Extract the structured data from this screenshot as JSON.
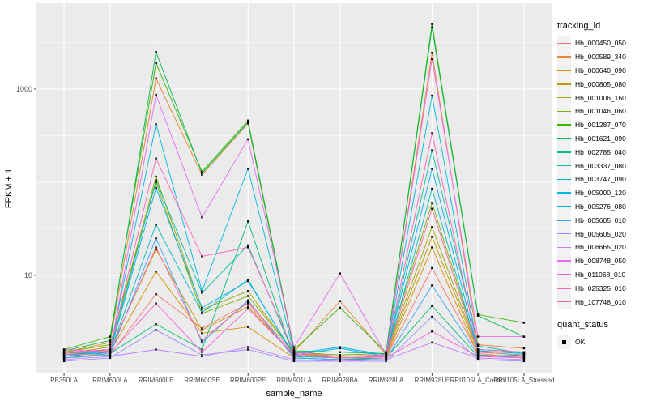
{
  "chart_data": {
    "type": "line",
    "title": "",
    "xlabel": "sample_name",
    "ylabel": "FPKM + 1",
    "y_scale": "log10",
    "ylim": [
      1,
      8000
    ],
    "y_ticks": [
      10,
      1000
    ],
    "y_tick_labels": [
      "10",
      "1000"
    ],
    "grid": true,
    "panel_bg": "#EBEBEB",
    "grid_color": "#FFFFFF",
    "axis_text_color": "#4D4D4D",
    "tick_color": "#333333",
    "point_color": "#000000",
    "legend_position": "right",
    "categories": [
      "PB350LA",
      "RRIM600LA",
      "RRIM600LE",
      "RRIM600SE",
      "RRIM600PE",
      "RRIM901LA",
      "RRIM928BA",
      "RRIM928LA",
      "RRIM928LE",
      "RRII105LA_Control",
      "RRII105LA_Stressed"
    ],
    "series": [
      {
        "name": "Hb_000450_050",
        "color": "#F8766D",
        "values": [
          1.3,
          1.4,
          6.3,
          2.7,
          5.0,
          1.35,
          1.3,
          1.3,
          12,
          1.45,
          1.3
        ]
      },
      {
        "name": "Hb_000589_340",
        "color": "#EA8331",
        "values": [
          1.5,
          1.9,
          1300,
          120,
          430,
          1.5,
          5.3,
          1.4,
          2450,
          1.8,
          1.65
        ]
      },
      {
        "name": "Hb_000640_090",
        "color": "#D89000",
        "values": [
          1.35,
          1.5,
          11,
          2.4,
          2.8,
          1.3,
          1.25,
          1.3,
          20,
          1.4,
          1.35
        ]
      },
      {
        "name": "Hb_000805_080",
        "color": "#C09B00",
        "values": [
          1.4,
          1.6,
          19,
          2.6,
          4.6,
          1.4,
          1.3,
          1.35,
          26,
          1.5,
          1.4
        ]
      },
      {
        "name": "Hb_001006_160",
        "color": "#A3A500",
        "values": [
          1.45,
          1.7,
          115,
          4.3,
          6.8,
          1.45,
          1.35,
          1.4,
          33,
          1.55,
          1.45
        ]
      },
      {
        "name": "Hb_001046_060",
        "color": "#7CAE00",
        "values": [
          1.5,
          1.8,
          100,
          3.9,
          6.0,
          1.5,
          1.4,
          1.45,
          60,
          1.6,
          1.5
        ]
      },
      {
        "name": "Hb_001287_070",
        "color": "#39B600",
        "values": [
          1.6,
          2.2,
          1900,
          130,
          460,
          1.6,
          4.5,
          1.5,
          5000,
          3.8,
          3.1
        ]
      },
      {
        "name": "Hb_001621_090",
        "color": "#00BB4E",
        "values": [
          1.55,
          2.0,
          2500,
          125,
          440,
          1.55,
          1.5,
          1.45,
          4600,
          3.7,
          2.2
        ]
      },
      {
        "name": "Hb_002785_040",
        "color": "#00BF7D",
        "values": [
          1.3,
          1.45,
          3.0,
          1.6,
          38,
          1.3,
          1.25,
          1.3,
          4.7,
          1.35,
          1.4
        ]
      },
      {
        "name": "Hb_003337_080",
        "color": "#00C1A3",
        "values": [
          1.4,
          1.55,
          105,
          6.5,
          21,
          1.4,
          1.3,
          1.35,
          220,
          1.75,
          1.45
        ]
      },
      {
        "name": "Hb_003747_090",
        "color": "#00BFC4",
        "values": [
          1.35,
          1.5,
          35,
          4.0,
          9.0,
          1.35,
          1.3,
          1.3,
          85,
          1.5,
          1.4
        ]
      },
      {
        "name": "Hb_005000_120",
        "color": "#00BAE0",
        "values": [
          1.45,
          1.6,
          420,
          6.8,
          140,
          1.45,
          1.7,
          1.4,
          850,
          1.6,
          1.5
        ]
      },
      {
        "name": "Hb_005276_080",
        "color": "#00B0F6",
        "values": [
          1.4,
          1.5,
          87,
          4.5,
          8.7,
          1.4,
          1.65,
          1.35,
          140,
          1.55,
          1.45
        ]
      },
      {
        "name": "Hb_005605_010",
        "color": "#35A2FF",
        "values": [
          1.3,
          1.4,
          25,
          1.9,
          5.4,
          1.3,
          1.25,
          1.25,
          7.8,
          1.4,
          1.3
        ]
      },
      {
        "name": "Hb_005605_020",
        "color": "#9590FF",
        "values": [
          1.2,
          1.3,
          2.6,
          1.4,
          1.6,
          1.2,
          1.2,
          1.2,
          3.6,
          1.25,
          1.2
        ]
      },
      {
        "name": "Hb_006665_020",
        "color": "#C77CFF",
        "values": [
          1.25,
          1.35,
          1.6,
          1.35,
          1.7,
          1.25,
          1.2,
          1.25,
          1.9,
          1.3,
          1.25
        ]
      },
      {
        "name": "Hb_008748_050",
        "color": "#E76BF3",
        "values": [
          1.6,
          1.5,
          870,
          42,
          290,
          1.7,
          10.5,
          1.4,
          2100,
          2.2,
          2.2
        ]
      },
      {
        "name": "Hb_011068_010",
        "color": "#FA62DB",
        "values": [
          1.4,
          1.45,
          5.0,
          1.5,
          4.4,
          1.4,
          1.3,
          1.3,
          2.5,
          1.35,
          1.3
        ]
      },
      {
        "name": "Hb_025325_010",
        "color": "#FF62BC",
        "values": [
          1.5,
          1.6,
          180,
          16,
          20,
          1.5,
          1.35,
          1.4,
          335,
          1.6,
          1.5
        ]
      },
      {
        "name": "Hb_107748_010",
        "color": "#FF6A98",
        "values": [
          1.45,
          1.55,
          20,
          2.0,
          5.2,
          1.45,
          1.3,
          1.35,
          52,
          1.5,
          1.4
        ]
      }
    ]
  },
  "legend": {
    "tracking_title": "tracking_id",
    "quant_title": "quant_status",
    "quant_items": [
      {
        "label": "OK"
      }
    ]
  }
}
